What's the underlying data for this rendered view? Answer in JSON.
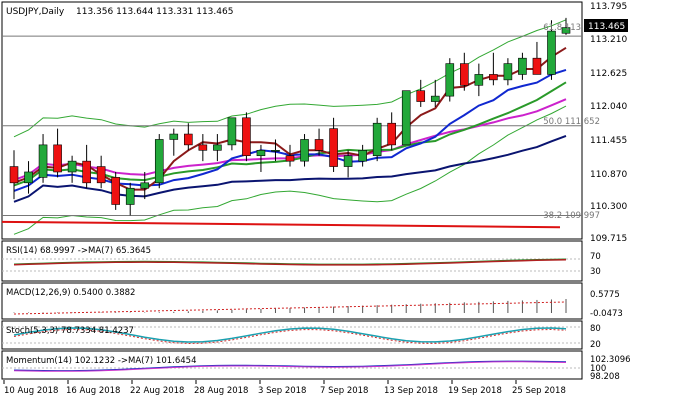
{
  "header": {
    "symbol": "USDJPY,Daily",
    "ohlc": "113.356 113.644 113.331 113.465"
  },
  "main_panel": {
    "current_price_badge": "113.465",
    "price_ticks": [
      "113.795",
      "113.210",
      "112.625",
      "112.040",
      "111.455",
      "110.870",
      "110.300",
      "109.715"
    ],
    "fib_labels": [
      {
        "label": "61.8 113.307",
        "price": 113.307
      },
      {
        "label": "50.0 111.652",
        "price": 111.652
      },
      {
        "label": "38.2 109.997",
        "price": 109.997
      }
    ]
  },
  "rsi_panel": {
    "label": "RSI(14) 68.9997  ->MA(7) 65.3645",
    "ticks": [
      "70",
      "30"
    ]
  },
  "macd_panel": {
    "label": "MACD(12,26,9) 0.5400 0.3882",
    "ticks": [
      "0.5775",
      "-0.0473"
    ]
  },
  "stoch_panel": {
    "label": "Stoch(5,3,3) 78.7334 81.4237",
    "ticks": [
      "80",
      "20"
    ]
  },
  "momentum_panel": {
    "label": "Momentum(14) 102.1232  ->MA(7) 101.6454",
    "ticks": [
      "102.3096",
      "100",
      "98.208"
    ]
  },
  "x_axis": {
    "dates": [
      "10 Aug 2018",
      "16 Aug 2018",
      "22 Aug 2018",
      "28 Aug 2018",
      "3 Sep 2018",
      "7 Sep 2018",
      "13 Sep 2018",
      "19 Sep 2018",
      "25 Sep 2018"
    ]
  },
  "chart_data": {
    "type": "candlestick",
    "title": "USDJPY,Daily",
    "ylim": [
      109.6,
      113.9
    ],
    "candles": [
      {
        "o": 110.9,
        "h": 111.2,
        "l": 110.3,
        "c": 110.6
      },
      {
        "o": 110.6,
        "h": 111.0,
        "l": 110.4,
        "c": 110.8
      },
      {
        "o": 110.7,
        "h": 111.5,
        "l": 110.6,
        "c": 111.3
      },
      {
        "o": 111.3,
        "h": 111.6,
        "l": 110.7,
        "c": 110.8
      },
      {
        "o": 110.8,
        "h": 111.1,
        "l": 110.6,
        "c": 111.0
      },
      {
        "o": 111.0,
        "h": 111.3,
        "l": 110.5,
        "c": 110.6
      },
      {
        "o": 110.9,
        "h": 111.1,
        "l": 110.5,
        "c": 110.6
      },
      {
        "o": 110.7,
        "h": 110.8,
        "l": 110.1,
        "c": 110.2
      },
      {
        "o": 110.2,
        "h": 110.6,
        "l": 110.0,
        "c": 110.5
      },
      {
        "o": 110.5,
        "h": 110.8,
        "l": 110.3,
        "c": 110.6
      },
      {
        "o": 110.6,
        "h": 111.5,
        "l": 110.5,
        "c": 111.4
      },
      {
        "o": 111.4,
        "h": 111.6,
        "l": 111.1,
        "c": 111.5
      },
      {
        "o": 111.5,
        "h": 111.7,
        "l": 111.2,
        "c": 111.3
      },
      {
        "o": 111.3,
        "h": 111.5,
        "l": 111.0,
        "c": 111.2
      },
      {
        "o": 111.2,
        "h": 111.5,
        "l": 111.0,
        "c": 111.3
      },
      {
        "o": 111.3,
        "h": 111.8,
        "l": 111.2,
        "c": 111.8
      },
      {
        "o": 111.8,
        "h": 111.9,
        "l": 111.0,
        "c": 111.1
      },
      {
        "o": 111.1,
        "h": 111.3,
        "l": 110.8,
        "c": 111.2
      },
      {
        "o": 111.2,
        "h": 111.4,
        "l": 111.0,
        "c": 111.2
      },
      {
        "o": 111.1,
        "h": 111.3,
        "l": 110.9,
        "c": 111.0
      },
      {
        "o": 111.0,
        "h": 111.5,
        "l": 110.9,
        "c": 111.4
      },
      {
        "o": 111.4,
        "h": 111.6,
        "l": 111.1,
        "c": 111.2
      },
      {
        "o": 111.6,
        "h": 111.8,
        "l": 110.8,
        "c": 110.9
      },
      {
        "o": 110.9,
        "h": 111.2,
        "l": 110.7,
        "c": 111.1
      },
      {
        "o": 111.0,
        "h": 111.3,
        "l": 110.9,
        "c": 111.2
      },
      {
        "o": 111.1,
        "h": 111.8,
        "l": 111.0,
        "c": 111.7
      },
      {
        "o": 111.7,
        "h": 111.9,
        "l": 111.2,
        "c": 111.3
      },
      {
        "o": 111.3,
        "h": 112.3,
        "l": 111.3,
        "c": 112.3
      },
      {
        "o": 112.3,
        "h": 112.5,
        "l": 112.0,
        "c": 112.1
      },
      {
        "o": 112.1,
        "h": 112.5,
        "l": 112.0,
        "c": 112.2
      },
      {
        "o": 112.2,
        "h": 112.9,
        "l": 112.1,
        "c": 112.8
      },
      {
        "o": 112.8,
        "h": 113.0,
        "l": 112.3,
        "c": 112.4
      },
      {
        "o": 112.4,
        "h": 112.8,
        "l": 112.2,
        "c": 112.6
      },
      {
        "o": 112.6,
        "h": 113.0,
        "l": 112.4,
        "c": 112.5
      },
      {
        "o": 112.5,
        "h": 112.9,
        "l": 112.4,
        "c": 112.8
      },
      {
        "o": 112.6,
        "h": 113.0,
        "l": 112.5,
        "c": 112.9
      },
      {
        "o": 112.9,
        "h": 113.2,
        "l": 112.6,
        "c": 112.6
      },
      {
        "o": 112.6,
        "h": 113.6,
        "l": 112.5,
        "c": 113.4
      },
      {
        "o": 113.36,
        "h": 113.644,
        "l": 113.331,
        "c": 113.465
      }
    ],
    "colors": {
      "bull": "#22a83a",
      "bear": "#ee1111",
      "ma_darkred": "#8b1a1a",
      "ma_blue": "#1028d0",
      "ma_green": "#2a9a2a",
      "ma_magenta": "#cc22cc",
      "ma_navy": "#0a1470",
      "ma_red": "#dd1111",
      "band": "#33a833",
      "fib_line": "#777777"
    }
  }
}
